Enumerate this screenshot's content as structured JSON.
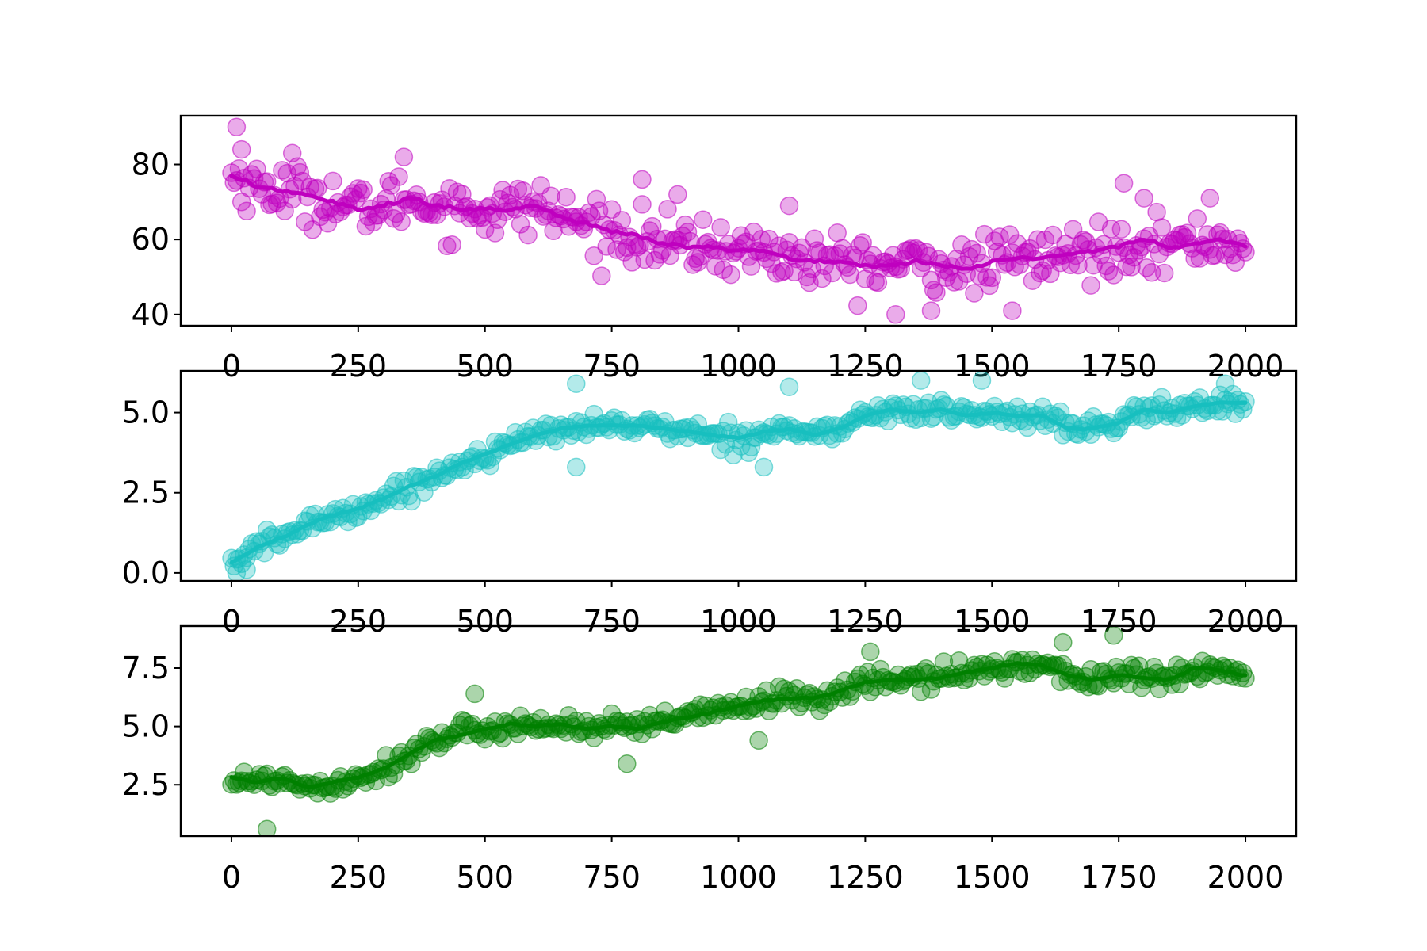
{
  "chart_data": [
    {
      "type": "scatter",
      "color": "#bf00bf",
      "xlim": [
        -100,
        2100
      ],
      "ylim": [
        37,
        93
      ],
      "x_ticks": [
        0,
        250,
        500,
        750,
        1000,
        1250,
        1500,
        1750,
        2000
      ],
      "x_tick_labels": [
        "0",
        "250",
        "500",
        "750",
        "1000",
        "1250",
        "1500",
        "1750",
        "2000"
      ],
      "y_ticks": [
        40,
        60,
        80
      ],
      "y_tick_labels": [
        "40",
        "60",
        "80"
      ],
      "trend": {
        "x": [
          0,
          50,
          100,
          150,
          200,
          250,
          300,
          350,
          400,
          450,
          500,
          550,
          600,
          650,
          700,
          750,
          800,
          850,
          900,
          950,
          1000,
          1050,
          1100,
          1150,
          1200,
          1250,
          1300,
          1350,
          1400,
          1450,
          1500,
          1550,
          1600,
          1650,
          1700,
          1750,
          1800,
          1850,
          1900,
          1950,
          2000
        ],
        "y": [
          77,
          74,
          73,
          72,
          70,
          68,
          69,
          71,
          69,
          68,
          68,
          68,
          69,
          66,
          64,
          62,
          61,
          59,
          58,
          58,
          57,
          57,
          55,
          54,
          54,
          53,
          53,
          54,
          53,
          52,
          54,
          55,
          55,
          56,
          57,
          58,
          60,
          58,
          59,
          60,
          58
        ]
      },
      "noise": 6.5,
      "outliers": [
        [
          10,
          90
        ],
        [
          20,
          84
        ],
        [
          120,
          83
        ],
        [
          340,
          82
        ],
        [
          810,
          76
        ],
        [
          880,
          72
        ],
        [
          1100,
          69
        ],
        [
          1310,
          40
        ],
        [
          1380,
          41
        ],
        [
          1540,
          41
        ],
        [
          1760,
          75
        ],
        [
          1800,
          71
        ],
        [
          1930,
          71
        ]
      ]
    },
    {
      "type": "scatter",
      "color": "#17bfbf",
      "xlim": [
        -100,
        2100
      ],
      "ylim": [
        -0.25,
        6.3
      ],
      "x_ticks": [
        0,
        250,
        500,
        750,
        1000,
        1250,
        1500,
        1750,
        2000
      ],
      "x_tick_labels": [
        "0",
        "250",
        "500",
        "750",
        "1000",
        "1250",
        "1500",
        "1750",
        "2000"
      ],
      "y_ticks": [
        0.0,
        2.5,
        5.0
      ],
      "y_tick_labels": [
        "0.0",
        "2.5",
        "5.0"
      ],
      "trend": {
        "x": [
          0,
          50,
          100,
          150,
          200,
          250,
          300,
          350,
          400,
          450,
          500,
          550,
          600,
          650,
          700,
          750,
          800,
          850,
          900,
          950,
          1000,
          1050,
          1100,
          1150,
          1200,
          1250,
          1300,
          1350,
          1400,
          1450,
          1500,
          1550,
          1600,
          1650,
          1700,
          1750,
          1800,
          1850,
          1900,
          1950,
          2000
        ],
        "y": [
          0.3,
          0.8,
          1.1,
          1.5,
          1.8,
          2.0,
          2.3,
          2.7,
          3.0,
          3.4,
          3.7,
          4.0,
          4.3,
          4.5,
          4.6,
          4.6,
          4.6,
          4.5,
          4.4,
          4.3,
          4.2,
          4.4,
          4.5,
          4.3,
          4.5,
          4.9,
          5.1,
          5.0,
          5.1,
          4.9,
          5.0,
          4.9,
          4.9,
          4.5,
          4.5,
          4.7,
          5.1,
          5.0,
          5.2,
          5.3,
          5.3
        ]
      },
      "noise": 0.3,
      "outliers": [
        [
          10,
          0.0
        ],
        [
          30,
          0.1
        ],
        [
          680,
          5.9
        ],
        [
          680,
          3.3
        ],
        [
          1050,
          3.3
        ],
        [
          1100,
          5.8
        ],
        [
          1360,
          6.0
        ],
        [
          1480,
          6.0
        ],
        [
          1960,
          5.9
        ]
      ]
    },
    {
      "type": "scatter",
      "color": "#008000",
      "xlim": [
        -100,
        2100
      ],
      "ylim": [
        0.3,
        9.3
      ],
      "x_ticks": [
        0,
        250,
        500,
        750,
        1000,
        1250,
        1500,
        1750,
        2000
      ],
      "x_tick_labels": [
        "0",
        "250",
        "500",
        "750",
        "1000",
        "1250",
        "1500",
        "1750",
        "2000"
      ],
      "y_ticks": [
        2.5,
        5.0,
        7.5
      ],
      "y_tick_labels": [
        "2.5",
        "5.0",
        "7.5"
      ],
      "trend": {
        "x": [
          0,
          50,
          100,
          150,
          200,
          250,
          300,
          350,
          400,
          450,
          500,
          550,
          600,
          650,
          700,
          750,
          800,
          850,
          900,
          950,
          1000,
          1050,
          1100,
          1150,
          1200,
          1250,
          1300,
          1350,
          1400,
          1450,
          1500,
          1550,
          1600,
          1650,
          1700,
          1750,
          1800,
          1850,
          1900,
          1950,
          2000
        ],
        "y": [
          2.8,
          2.6,
          2.8,
          2.4,
          2.6,
          2.8,
          3.2,
          3.8,
          4.4,
          4.6,
          4.9,
          5.1,
          5.0,
          5.1,
          4.9,
          5.0,
          4.9,
          5.2,
          5.4,
          5.6,
          5.9,
          6.1,
          6.2,
          6.2,
          6.5,
          6.9,
          7.0,
          7.0,
          7.1,
          7.3,
          7.5,
          7.7,
          7.6,
          7.2,
          7.0,
          7.2,
          7.1,
          7.0,
          7.5,
          7.4,
          7.2
        ]
      },
      "noise": 0.45,
      "outliers": [
        [
          70,
          0.6
        ],
        [
          480,
          6.4
        ],
        [
          780,
          3.4
        ],
        [
          1040,
          4.4
        ],
        [
          1260,
          8.2
        ],
        [
          1740,
          8.9
        ],
        [
          1640,
          8.6
        ]
      ]
    }
  ]
}
